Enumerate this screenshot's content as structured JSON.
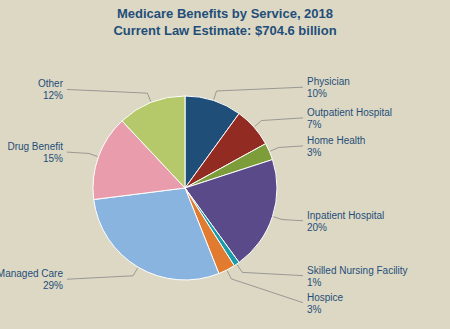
{
  "chart_data": {
    "type": "pie",
    "title": "Medicare Benefits by Service, 2018",
    "subtitle": "Current Law Estimate: $704.6 billion",
    "categories": [
      "Physician",
      "Outpatient Hospital",
      "Home Health",
      "Inpatient Hospital",
      "Skilled Nursing Facility",
      "Hospice",
      "Managed Care",
      "Drug Benefit",
      "Other"
    ],
    "values": [
      10,
      7,
      3,
      20,
      1,
      3,
      29,
      15,
      12
    ],
    "value_labels": [
      "10%",
      "7%",
      "3%",
      "20%",
      "1%",
      "3%",
      "29%",
      "15%",
      "12%"
    ],
    "colors": [
      "#1f4e79",
      "#922b21",
      "#7d9c3a",
      "#5b4a8a",
      "#1a9baa",
      "#e07b30",
      "#8ab4e0",
      "#e89cac",
      "#b5c96a"
    ],
    "data_labels": true
  }
}
